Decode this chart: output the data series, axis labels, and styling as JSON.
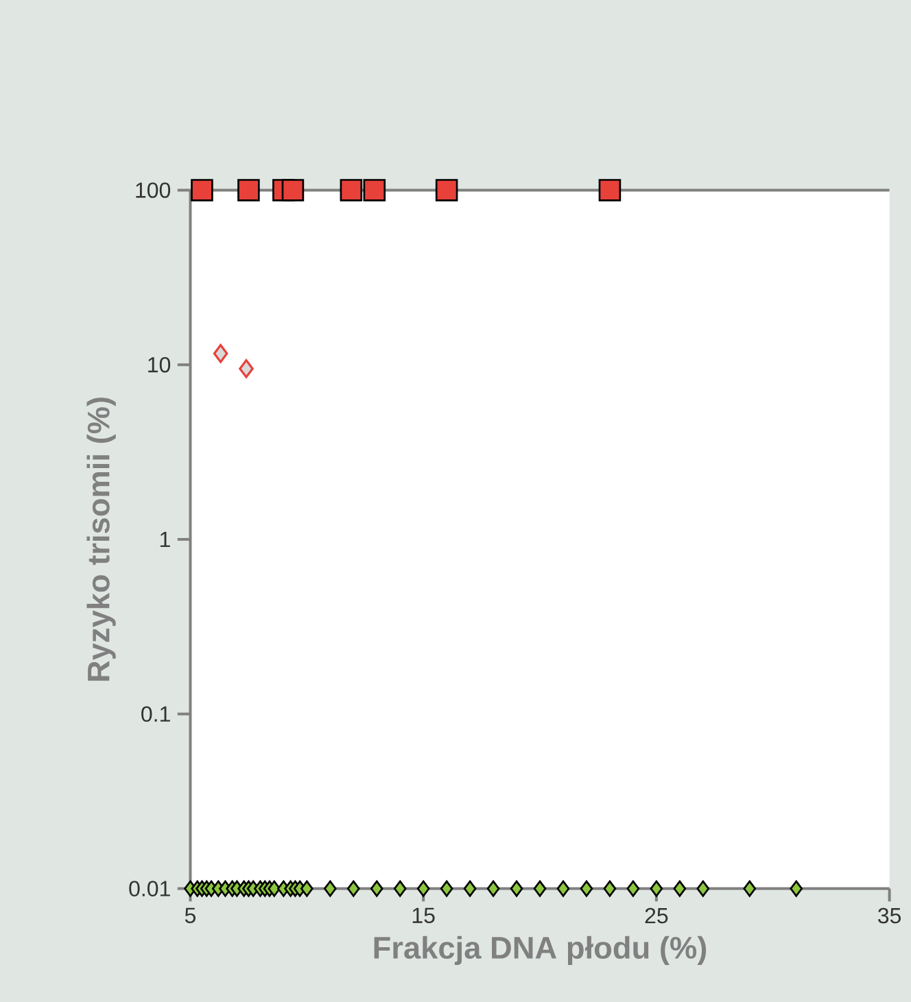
{
  "chart_data": {
    "type": "scatter",
    "xlabel": "Frakcja DNA płodu (%)",
    "ylabel": "Ryzyko trisomii (%)",
    "log": "y",
    "grid": false,
    "xlim": [
      5,
      35
    ],
    "xticks": [
      5,
      15,
      25,
      35
    ],
    "ylim": [
      0.01,
      100
    ],
    "yticks": [
      0.01,
      0.1,
      1,
      10,
      100
    ],
    "series": [
      {
        "color": "#e8413a",
        "marker": "square",
        "x": [
          5.5,
          7.5,
          9.0,
          9.4,
          11.9,
          12.9,
          16.0,
          23.0
        ],
        "values": [
          100,
          100,
          100,
          100,
          100,
          100,
          100,
          100
        ]
      },
      {
        "color": "#e8413a",
        "marker": "diamond",
        "x": [
          6.3,
          7.4
        ],
        "values": [
          11.6,
          9.5
        ]
      },
      {
        "color": "#8cc63f",
        "marker": "diamond",
        "x": [
          5.0,
          5.3,
          5.5,
          5.7,
          5.9,
          6.2,
          6.5,
          6.8,
          7.0,
          7.3,
          7.5,
          7.7,
          8.0,
          8.2,
          8.4,
          8.6,
          9.0,
          9.3,
          9.5,
          9.7,
          10.0,
          11,
          12,
          13,
          14,
          15,
          16,
          17,
          18,
          19,
          20,
          21,
          22,
          23,
          24,
          25,
          26,
          27,
          29,
          31
        ],
        "values": [
          0.01,
          0.01,
          0.01,
          0.01,
          0.01,
          0.01,
          0.01,
          0.01,
          0.01,
          0.01,
          0.01,
          0.01,
          0.01,
          0.01,
          0.01,
          0.01,
          0.01,
          0.01,
          0.01,
          0.01,
          0.01,
          0.01,
          0.01,
          0.01,
          0.01,
          0.01,
          0.01,
          0.01,
          0.01,
          0.01,
          0.01,
          0.01,
          0.01,
          0.01,
          0.01,
          0.01,
          0.01,
          0.01,
          0.01,
          0.01
        ]
      }
    ]
  }
}
